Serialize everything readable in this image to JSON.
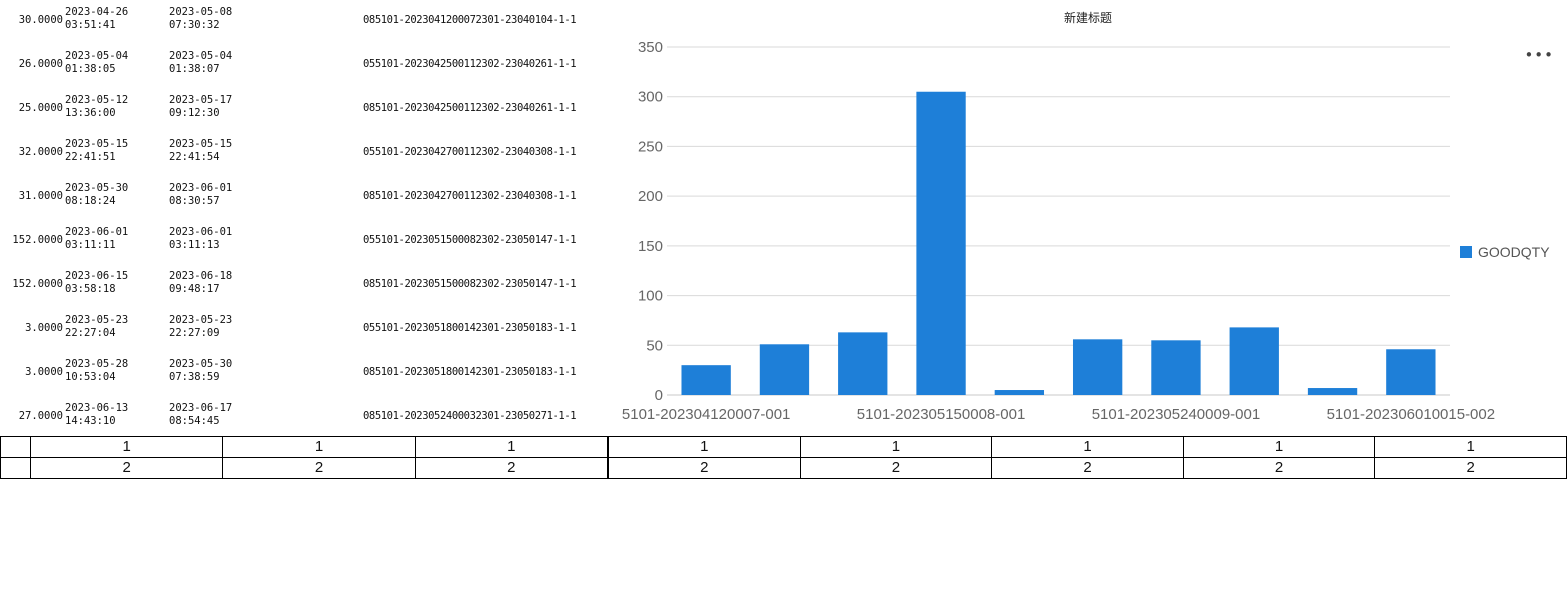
{
  "rows": [
    {
      "qty": "30.0000",
      "start": [
        "2023-04-26",
        "03:51:41"
      ],
      "end": [
        "2023-05-08",
        "07:30:32"
      ],
      "code": "085101-2023041200072301-23040104-1-1"
    },
    {
      "qty": "26.0000",
      "start": [
        "2023-05-04",
        "01:38:05"
      ],
      "end": [
        "2023-05-04",
        "01:38:07"
      ],
      "code": "055101-2023042500112302-23040261-1-1"
    },
    {
      "qty": "25.0000",
      "start": [
        "2023-05-12",
        "13:36:00"
      ],
      "end": [
        "2023-05-17",
        "09:12:30"
      ],
      "code": "085101-2023042500112302-23040261-1-1"
    },
    {
      "qty": "32.0000",
      "start": [
        "2023-05-15",
        "22:41:51"
      ],
      "end": [
        "2023-05-15",
        "22:41:54"
      ],
      "code": "055101-2023042700112302-23040308-1-1"
    },
    {
      "qty": "31.0000",
      "start": [
        "2023-05-30",
        "08:18:24"
      ],
      "end": [
        "2023-06-01",
        "08:30:57"
      ],
      "code": "085101-2023042700112302-23040308-1-1"
    },
    {
      "qty": "152.0000",
      "start": [
        "2023-06-01",
        "03:11:11"
      ],
      "end": [
        "2023-06-01",
        "03:11:13"
      ],
      "code": "055101-2023051500082302-23050147-1-1"
    },
    {
      "qty": "152.0000",
      "start": [
        "2023-06-15",
        "03:58:18"
      ],
      "end": [
        "2023-06-18",
        "09:48:17"
      ],
      "code": "085101-2023051500082302-23050147-1-1"
    },
    {
      "qty": "3.0000",
      "start": [
        "2023-05-23",
        "22:27:04"
      ],
      "end": [
        "2023-05-23",
        "22:27:09"
      ],
      "code": "055101-2023051800142301-23050183-1-1"
    },
    {
      "qty": "3.0000",
      "start": [
        "2023-05-28",
        "10:53:04"
      ],
      "end": [
        "2023-05-30",
        "07:38:59"
      ],
      "code": "085101-2023051800142301-23050183-1-1"
    },
    {
      "qty": "27.0000",
      "start": [
        "2023-06-13",
        "14:43:10"
      ],
      "end": [
        "2023-06-17",
        "08:54:45"
      ],
      "code": "085101-2023052400032301-23050271-1-1"
    }
  ],
  "chart_data": {
    "type": "bar",
    "title": "新建标题",
    "categories": [
      "5101-202304120007-001",
      "",
      "",
      "5101-202305150008-001",
      "",
      "",
      "5101-202305240009-001",
      "",
      "",
      "5101-202306010015-002"
    ],
    "series": [
      {
        "name": "GOODQTY",
        "values": [
          30,
          51,
          63,
          305,
          5,
          56,
          55,
          68,
          7,
          46
        ],
        "color": "#1e7fd8"
      }
    ],
    "ylim": [
      0,
      350
    ],
    "yticks": [
      "0",
      "50",
      "100",
      "150",
      "200",
      "250",
      "300",
      "350"
    ],
    "grid": true,
    "legend": "right"
  },
  "more_icon": "more-dots-icon",
  "grid": {
    "left": {
      "row1": [
        "",
        "1",
        "1",
        "1"
      ],
      "row2": [
        "",
        "2",
        "2",
        "2"
      ]
    },
    "right": {
      "row1": [
        "1",
        "1",
        "1",
        "1",
        "1"
      ],
      "row2": [
        "2",
        "2",
        "2",
        "2",
        "2"
      ]
    }
  }
}
